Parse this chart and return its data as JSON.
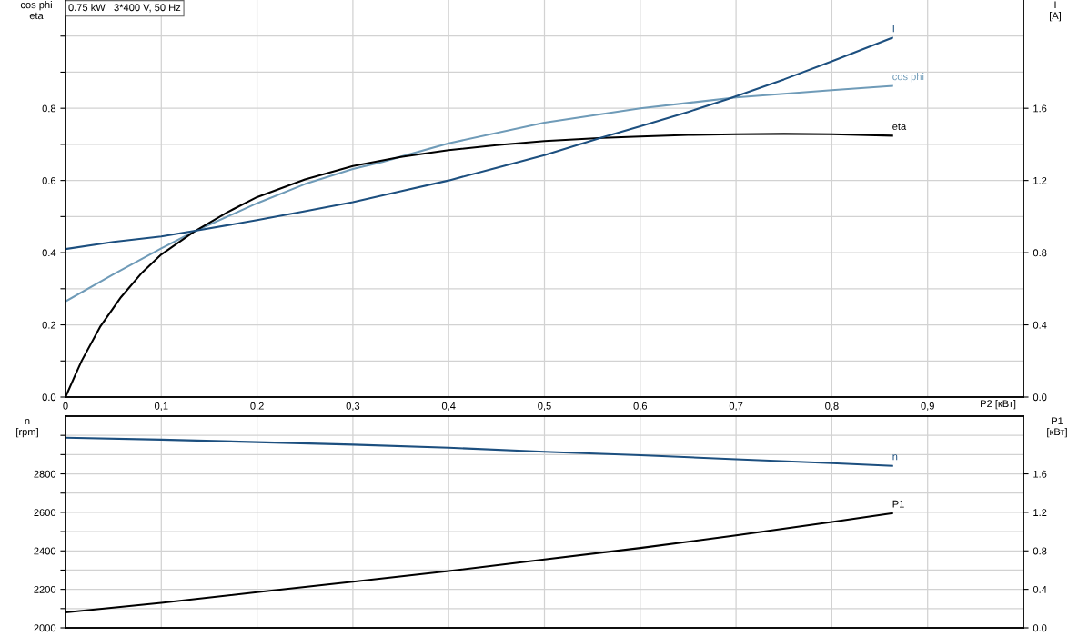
{
  "chart_data": [
    {
      "type": "line",
      "title": "0.75 kW   3*400 V, 50 Hz",
      "xlabel": "P2 [кВт]",
      "ylabel": "cos phi\neta",
      "y2label": "I\n[A]",
      "xlim": [
        0,
        1.0
      ],
      "xticks": [
        0,
        {
          "value": 0.1,
          "label": "0,1"
        },
        {
          "value": 0.2,
          "label": "0,2"
        },
        {
          "value": 0.3,
          "label": "0,3"
        },
        {
          "value": 0.4,
          "label": "0,4"
        },
        {
          "value": 0.5,
          "label": "0,5"
        },
        {
          "value": 0.6,
          "label": "0,6"
        },
        {
          "value": 0.7,
          "label": "0,7"
        },
        {
          "value": 0.8,
          "label": "0,8"
        },
        {
          "value": 0.9,
          "label": "0,9"
        }
      ],
      "ylim": [
        0,
        1.1
      ],
      "yticks": [
        {
          "value": 0,
          "label": "0.0"
        },
        {
          "value": 0.1,
          "label": null
        },
        0.2,
        {
          "value": 0.3,
          "label": null
        },
        0.4,
        {
          "value": 0.5,
          "label": null
        },
        0.6,
        {
          "value": 0.7,
          "label": null
        },
        0.8,
        {
          "value": 0.9,
          "label": null
        },
        {
          "value": 1.0,
          "label": null
        }
      ],
      "y2lim": [
        0,
        2.2
      ],
      "y2ticks": [
        {
          "value": 0,
          "label": "0.0"
        },
        0.4,
        0.8,
        1.2,
        1.6
      ],
      "grid": true,
      "line_style": "solid",
      "series": [
        {
          "name": "I",
          "color": "#1c4f7f",
          "axis": "y2",
          "x": [
            0,
            0.05,
            0.1,
            0.134,
            0.2,
            0.25,
            0.3,
            0.35,
            0.4,
            0.45,
            0.5,
            0.561,
            0.6,
            0.65,
            0.691,
            0.75,
            0.8,
            0.863
          ],
          "values": [
            0.82,
            0.86,
            0.89,
            0.92,
            0.98,
            1.03,
            1.08,
            1.14,
            1.2,
            1.27,
            1.34,
            1.44,
            1.5,
            1.58,
            1.65,
            1.76,
            1.86,
            1.99
          ]
        },
        {
          "name": "cos phi",
          "color": "#6f9bb8",
          "x": [
            0,
            0.05,
            0.1,
            0.134,
            0.2,
            0.25,
            0.3,
            0.33,
            0.4,
            0.5,
            0.6,
            0.7,
            0.8,
            0.863
          ],
          "values": [
            0.265,
            0.34,
            0.412,
            0.458,
            0.537,
            0.59,
            0.632,
            0.651,
            0.703,
            0.76,
            0.8,
            0.83,
            0.85,
            0.862
          ]
        },
        {
          "name": "eta",
          "color": "#000000",
          "x": [
            0,
            0.01,
            0.017,
            0.036,
            0.058,
            0.08,
            0.1,
            0.134,
            0.169,
            0.2,
            0.25,
            0.3,
            0.35,
            0.4,
            0.45,
            0.5,
            0.561,
            0.6,
            0.65,
            0.7,
            0.75,
            0.8,
            0.863
          ],
          "values": [
            0,
            0.06,
            0.101,
            0.194,
            0.277,
            0.345,
            0.395,
            0.458,
            0.512,
            0.554,
            0.603,
            0.64,
            0.665,
            0.684,
            0.698,
            0.709,
            0.718,
            0.722,
            0.726,
            0.728,
            0.729,
            0.728,
            0.724
          ]
        }
      ]
    },
    {
      "type": "line",
      "ylabel": "n\n[rpm]",
      "y2label": "P1\n[кВт]",
      "xlim": [
        0,
        1.0
      ],
      "xticks": [
        {
          "value": 0,
          "label": null
        },
        {
          "value": 0.1,
          "label": null
        },
        {
          "value": 0.2,
          "label": null
        },
        {
          "value": 0.3,
          "label": null
        },
        {
          "value": 0.4,
          "label": null
        },
        {
          "value": 0.5,
          "label": null
        },
        {
          "value": 0.6,
          "label": null
        },
        {
          "value": 0.7,
          "label": null
        },
        {
          "value": 0.8,
          "label": null
        },
        {
          "value": 0.9,
          "label": null
        }
      ],
      "ylim": [
        2000,
        3100
      ],
      "yticks": [
        2000,
        {
          "value": 2100,
          "label": null
        },
        2200,
        {
          "value": 2300,
          "label": null
        },
        2400,
        {
          "value": 2500,
          "label": null
        },
        2600,
        {
          "value": 2700,
          "label": null
        },
        2800,
        {
          "value": 2900,
          "label": null
        },
        {
          "value": 3000,
          "label": null
        }
      ],
      "y2lim": [
        0,
        2.2
      ],
      "y2ticks": [
        {
          "value": 0,
          "label": "0.0"
        },
        0.4,
        0.8,
        1.2,
        1.6
      ],
      "grid": true,
      "line_style": "solid",
      "tick_labels": "y",
      "series": [
        {
          "name": "n",
          "color": "#1c4f7f",
          "x": [
            0,
            0.1,
            0.2,
            0.3,
            0.4,
            0.5,
            0.6,
            0.7,
            0.8,
            0.863
          ],
          "values": [
            2988,
            2978,
            2965,
            2952,
            2936,
            2915,
            2897,
            2876,
            2856,
            2842
          ]
        },
        {
          "name": "P1",
          "color": "#000000",
          "axis": "y2",
          "x": [
            0,
            0.1,
            0.2,
            0.3,
            0.4,
            0.5,
            0.6,
            0.7,
            0.8,
            0.863
          ],
          "values": [
            0.16,
            0.26,
            0.37,
            0.48,
            0.59,
            0.71,
            0.83,
            0.96,
            1.1,
            1.19
          ]
        }
      ]
    }
  ]
}
